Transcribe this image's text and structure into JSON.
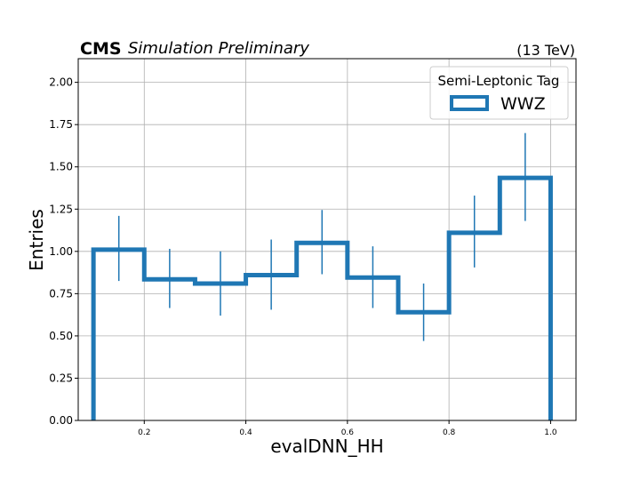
{
  "header": {
    "experiment": "CMS",
    "status": "Simulation Preliminary",
    "energy": "(13 TeV)"
  },
  "legend": {
    "title": "Semi-Leptonic Tag",
    "entries": [
      "WWZ"
    ]
  },
  "colors": {
    "series": "#1f77b4",
    "grid": "#b0b0b0"
  },
  "chart_data": {
    "type": "histogram",
    "xlabel": "evalDNN_HH",
    "ylabel": "Entries",
    "xlim": [
      0.07,
      1.05
    ],
    "ylim": [
      0,
      2.14
    ],
    "grid": true,
    "legend_position": "top-right",
    "x_ticks": [
      0.2,
      0.4,
      0.6,
      0.8,
      1.0
    ],
    "x_tick_labels": [
      "0.2",
      "0.4",
      "0.6",
      "0.8",
      "1.0"
    ],
    "y_ticks": [
      0,
      0.25,
      0.5,
      0.75,
      1.0,
      1.25,
      1.5,
      1.75,
      2.0
    ],
    "y_tick_labels": [
      "0.00",
      "0.25",
      "0.50",
      "0.75",
      "1.00",
      "1.25",
      "1.50",
      "1.75",
      "2.00"
    ],
    "bin_edges": [
      0.1,
      0.2,
      0.3,
      0.4,
      0.5,
      0.6,
      0.7,
      0.8,
      0.9,
      1.0
    ],
    "series": [
      {
        "name": "WWZ",
        "values": [
          1.01,
          0.835,
          0.81,
          0.86,
          1.05,
          0.845,
          0.64,
          1.11,
          1.435
        ],
        "err_low": [
          0.825,
          0.665,
          0.62,
          0.655,
          0.865,
          0.665,
          0.47,
          0.905,
          1.18
        ],
        "err_high": [
          1.21,
          1.015,
          1.0,
          1.07,
          1.245,
          1.03,
          0.81,
          1.33,
          1.7
        ]
      }
    ]
  }
}
